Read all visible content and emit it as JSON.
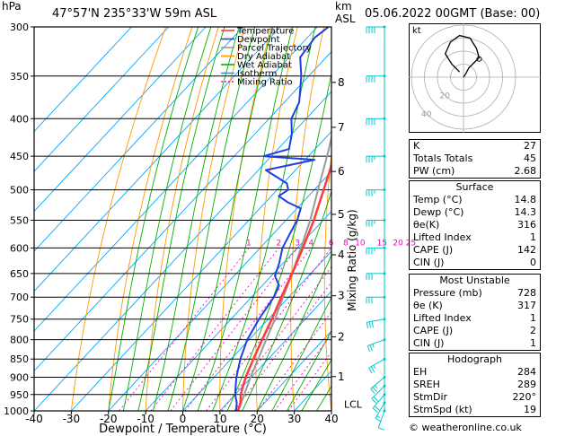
{
  "header": {
    "location": "47°57'N  235°33'W  59m  ASL",
    "datetime": "05.06.2022  00GMT  (Base: 00)",
    "hpa_label": "hPa",
    "km_label": "km",
    "asl_label": "ASL",
    "copyright": "© weatheronline.co.uk"
  },
  "legend": [
    "Temperature",
    "Dewpoint",
    "Parcel Trajectory",
    "Dry Adiabat",
    "Wet Adiabat",
    "Isotherm",
    "Mixing Ratio"
  ],
  "colors": {
    "temperature": "#ff3b3b",
    "dewpoint": "#1f3fe0",
    "parcel": "#9a9a9a",
    "dry_adiabat": "#ff9a00",
    "wet_adiabat": "#00b000",
    "isotherm": "#00a8ff",
    "mixing_ratio": "#ff00c8",
    "wind": "#00c8c8"
  },
  "chart_data": {
    "type": "skew-t log-p",
    "xlabel": "Dewpoint / Temperature (°C)",
    "ylabel_right": "Mixing Ratio (g/kg)",
    "x_ticks": [
      -40,
      -30,
      -20,
      -10,
      0,
      10,
      20,
      30,
      40
    ],
    "pressure_ticks": [
      300,
      350,
      400,
      450,
      500,
      550,
      600,
      650,
      700,
      750,
      800,
      850,
      900,
      950,
      1000
    ],
    "km_ticks": [
      {
        "km": 1,
        "p": 898
      },
      {
        "km": 2,
        "p": 793
      },
      {
        "km": 3,
        "p": 697
      },
      {
        "km": 4,
        "p": 613
      },
      {
        "km": 5,
        "p": 540
      },
      {
        "km": 6,
        "p": 472
      },
      {
        "km": 7,
        "p": 411
      },
      {
        "km": 8,
        "p": 357
      }
    ],
    "lcl_label": "LCL",
    "lcl_p": 987,
    "mixing_ratio_labels": [
      "1",
      "2",
      "3",
      "4",
      "6",
      "8",
      "10",
      "15",
      "20",
      "25"
    ],
    "mixing_ratio_values": [
      1,
      2,
      3,
      4,
      6,
      8,
      10,
      15,
      20,
      25
    ],
    "temperature": [
      {
        "p": 1000,
        "t": 14.8
      },
      {
        "p": 975,
        "t": 13.5
      },
      {
        "p": 950,
        "t": 11.5
      },
      {
        "p": 925,
        "t": 10.0
      },
      {
        "p": 900,
        "t": 8.5
      },
      {
        "p": 850,
        "t": 6.0
      },
      {
        "p": 800,
        "t": 3.5
      },
      {
        "p": 750,
        "t": 1.0
      },
      {
        "p": 700,
        "t": -2.0
      },
      {
        "p": 650,
        "t": -5.0
      },
      {
        "p": 600,
        "t": -8.5
      },
      {
        "p": 550,
        "t": -12.5
      },
      {
        "p": 500,
        "t": -17.5
      },
      {
        "p": 450,
        "t": -23.0
      },
      {
        "p": 400,
        "t": -29.0
      },
      {
        "p": 350,
        "t": -36.0
      },
      {
        "p": 300,
        "t": -44.0
      }
    ],
    "dewpoint": [
      {
        "p": 1000,
        "t": 14.3
      },
      {
        "p": 975,
        "t": 12.5
      },
      {
        "p": 950,
        "t": 10.0
      },
      {
        "p": 925,
        "t": 8.0
      },
      {
        "p": 900,
        "t": 6.0
      },
      {
        "p": 850,
        "t": 2.5
      },
      {
        "p": 800,
        "t": -0.5
      },
      {
        "p": 750,
        "t": -2.5
      },
      {
        "p": 700,
        "t": -4.0
      },
      {
        "p": 675,
        "t": -5.5
      },
      {
        "p": 655,
        "t": -9.0
      },
      {
        "p": 630,
        "t": -11.0
      },
      {
        "p": 600,
        "t": -14.0
      },
      {
        "p": 575,
        "t": -15.5
      },
      {
        "p": 550,
        "t": -17.0
      },
      {
        "p": 530,
        "t": -19.0
      },
      {
        "p": 520,
        "t": -24.0
      },
      {
        "p": 510,
        "t": -28.0
      },
      {
        "p": 500,
        "t": -27.0
      },
      {
        "p": 490,
        "t": -29.0
      },
      {
        "p": 470,
        "t": -38.0
      },
      {
        "p": 455,
        "t": -27.5
      },
      {
        "p": 450,
        "t": -42.0
      },
      {
        "p": 440,
        "t": -37.0
      },
      {
        "p": 420,
        "t": -40.0
      },
      {
        "p": 400,
        "t": -44.0
      },
      {
        "p": 380,
        "t": -46.0
      },
      {
        "p": 350,
        "t": -52.0
      },
      {
        "p": 330,
        "t": -57.0
      },
      {
        "p": 310,
        "t": -58.0
      },
      {
        "p": 300,
        "t": -57.0
      }
    ],
    "parcel": [
      {
        "p": 1000,
        "t": 14.8
      },
      {
        "p": 987,
        "t": 14.3
      },
      {
        "p": 900,
        "t": 9.8
      },
      {
        "p": 850,
        "t": 7.3
      },
      {
        "p": 800,
        "t": 4.6
      },
      {
        "p": 750,
        "t": 1.8
      },
      {
        "p": 700,
        "t": -1.5
      },
      {
        "p": 650,
        "t": -5.0
      },
      {
        "p": 600,
        "t": -9.0
      },
      {
        "p": 550,
        "t": -13.5
      },
      {
        "p": 500,
        "t": -19.0
      },
      {
        "p": 450,
        "t": -25.0
      },
      {
        "p": 400,
        "t": -32.0
      },
      {
        "p": 350,
        "t": -40.0
      },
      {
        "p": 300,
        "t": -49.0
      }
    ],
    "wind": [
      {
        "p": 1000,
        "dir": 200,
        "spd": 10
      },
      {
        "p": 975,
        "dir": 210,
        "spd": 15
      },
      {
        "p": 950,
        "dir": 220,
        "spd": 20
      },
      {
        "p": 925,
        "dir": 225,
        "spd": 20
      },
      {
        "p": 900,
        "dir": 230,
        "spd": 25
      },
      {
        "p": 850,
        "dir": 240,
        "spd": 25
      },
      {
        "p": 800,
        "dir": 250,
        "spd": 25
      },
      {
        "p": 750,
        "dir": 260,
        "spd": 30
      },
      {
        "p": 700,
        "dir": 270,
        "spd": 30
      },
      {
        "p": 650,
        "dir": 270,
        "spd": 30
      },
      {
        "p": 600,
        "dir": 270,
        "spd": 35
      },
      {
        "p": 550,
        "dir": 270,
        "spd": 35
      },
      {
        "p": 500,
        "dir": 270,
        "spd": 35
      },
      {
        "p": 450,
        "dir": 270,
        "spd": 35
      },
      {
        "p": 400,
        "dir": 270,
        "spd": 40
      },
      {
        "p": 350,
        "dir": 270,
        "spd": 40
      },
      {
        "p": 300,
        "dir": 270,
        "spd": 40
      }
    ]
  },
  "hodograph": {
    "label": "kt",
    "ring_labels": [
      "20",
      "40"
    ],
    "points": [
      {
        "u": 0,
        "v": 0
      },
      {
        "u": 2,
        "v": 3
      },
      {
        "u": 4,
        "v": 7
      },
      {
        "u": 8,
        "v": 11
      },
      {
        "u": 12,
        "v": 15
      },
      {
        "u": 10,
        "v": 22
      },
      {
        "u": 5,
        "v": 30
      },
      {
        "u": -3,
        "v": 32
      },
      {
        "u": -10,
        "v": 27
      },
      {
        "u": -14,
        "v": 18
      },
      {
        "u": -9,
        "v": 10
      },
      {
        "u": -3,
        "v": 4
      }
    ],
    "storm_motion": {
      "u": 12,
      "v": 14
    }
  },
  "indices": {
    "rows": [
      {
        "label": "K",
        "value": "27"
      },
      {
        "label": "Totals Totals",
        "value": "45"
      },
      {
        "label": "PW (cm)",
        "value": "2.68"
      }
    ]
  },
  "surface": {
    "title": "Surface",
    "rows": [
      {
        "label": "Temp (°C)",
        "value": "14.8"
      },
      {
        "label": "Dewp (°C)",
        "value": "14.3"
      },
      {
        "label": "θe(K)",
        "value": "316"
      },
      {
        "label": "Lifted Index",
        "value": "1"
      },
      {
        "label": "CAPE (J)",
        "value": "142"
      },
      {
        "label": "CIN (J)",
        "value": "0"
      }
    ]
  },
  "most_unstable": {
    "title": "Most Unstable",
    "rows": [
      {
        "label": "Pressure (mb)",
        "value": "728"
      },
      {
        "label": "θe (K)",
        "value": "317"
      },
      {
        "label": "Lifted Index",
        "value": "1"
      },
      {
        "label": "CAPE (J)",
        "value": "2"
      },
      {
        "label": "CIN (J)",
        "value": "1"
      }
    ]
  },
  "hodograph_params": {
    "title": "Hodograph",
    "rows": [
      {
        "label": "EH",
        "value": "284"
      },
      {
        "label": "SREH",
        "value": "289"
      },
      {
        "label": "StmDir",
        "value": "220°"
      },
      {
        "label": "StmSpd (kt)",
        "value": "19"
      }
    ]
  }
}
